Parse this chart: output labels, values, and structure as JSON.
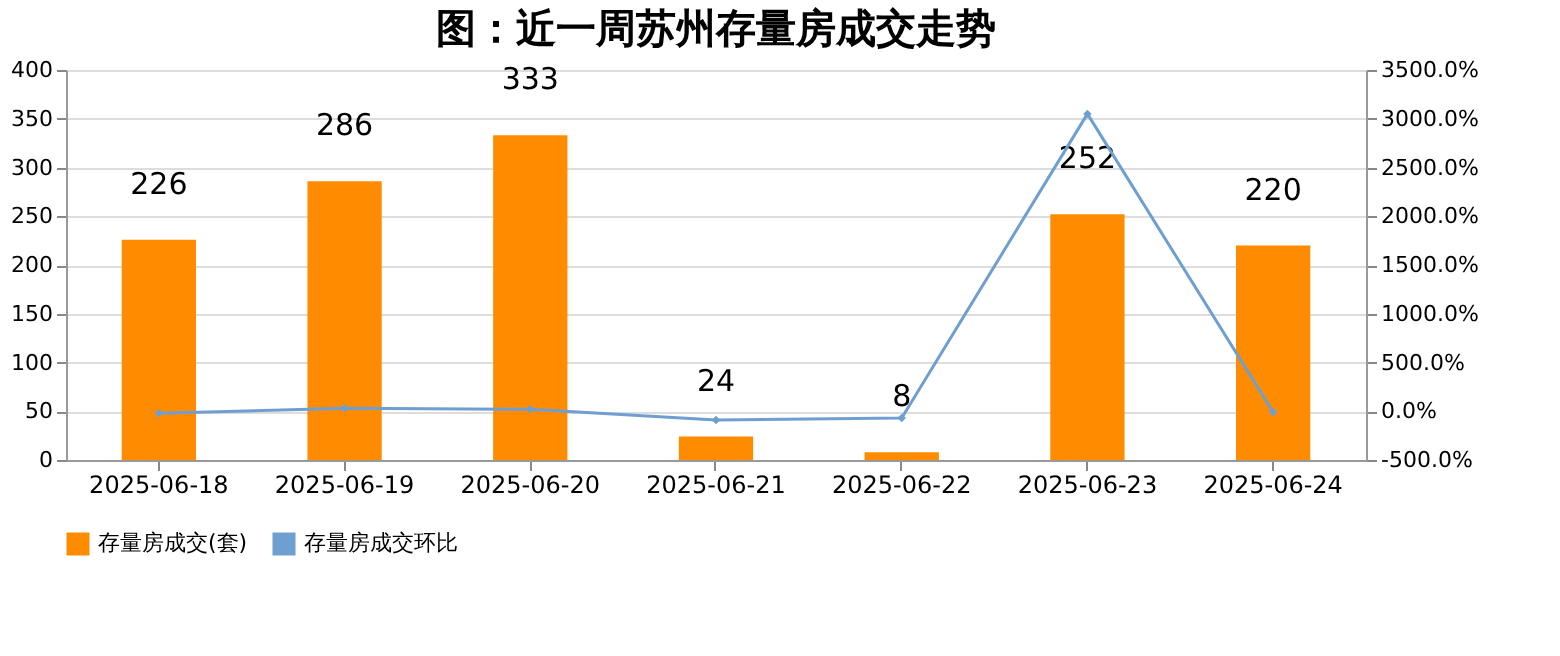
{
  "chart_data": {
    "type": "bar",
    "title": "图：近一周苏州存量房成交走势",
    "categories": [
      "2025-06-18",
      "2025-06-19",
      "2025-06-20",
      "2025-06-21",
      "2025-06-22",
      "2025-06-23",
      "2025-06-24"
    ],
    "series": [
      {
        "name": "存量房成交(套)",
        "color": "#ff8c00",
        "values": [
          226,
          286,
          333,
          24,
          8,
          252,
          220
        ],
        "value_labels": [
          "226",
          "286",
          "333",
          "24",
          "8",
          "252",
          "220"
        ]
      },
      {
        "name": "存量房成交环比",
        "type": "line",
        "axis": "y2",
        "color": "#6f9fd0",
        "marker": "diamond",
        "values": [
          -20,
          30,
          20,
          -90,
          -70,
          3050,
          -10
        ]
      }
    ],
    "ylim": [
      0,
      400
    ],
    "yticks": [
      0,
      50,
      100,
      150,
      200,
      250,
      300,
      350,
      400
    ],
    "y2lim": [
      -500,
      3500
    ],
    "y2ticks": [
      {
        "value": -500,
        "label": "-500.0%"
      },
      {
        "value": 0,
        "label": "0.0%"
      },
      {
        "value": 500,
        "label": "500.0%"
      },
      {
        "value": 1000,
        "label": "1000.0%"
      },
      {
        "value": 1500,
        "label": "1500.0%"
      },
      {
        "value": 2000,
        "label": "2000.0%"
      },
      {
        "value": 2500,
        "label": "2500.0%"
      },
      {
        "value": 3000,
        "label": "3000.0%"
      },
      {
        "value": 3500,
        "label": "3500.0%"
      }
    ],
    "grid": "y",
    "legend": "bottom"
  }
}
